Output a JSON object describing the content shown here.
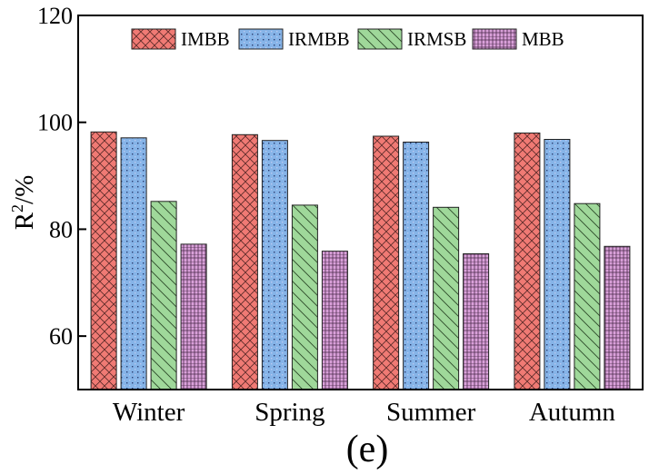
{
  "chart_data": {
    "type": "bar",
    "title": "",
    "xlabel": "",
    "ylabel_base": "R",
    "ylabel_sup": "2",
    "ylabel_unit": "/%",
    "caption": "(e)",
    "categories": [
      "Winter",
      "Spring",
      "Summer",
      "Autumn"
    ],
    "ylim": [
      50,
      120
    ],
    "yticks": [
      60,
      80,
      100,
      120
    ],
    "series": [
      {
        "name": "IMBB",
        "values": [
          98.2,
          97.7,
          97.4,
          98.0
        ],
        "color": "#f07a74",
        "pattern": "crosshatch"
      },
      {
        "name": "IRMBB",
        "values": [
          97.1,
          96.6,
          96.3,
          96.8
        ],
        "color": "#86b4e8",
        "pattern": "dots"
      },
      {
        "name": "IRMSB",
        "values": [
          85.2,
          84.5,
          84.1,
          84.8
        ],
        "color": "#9fd89a",
        "pattern": "backslash"
      },
      {
        "name": "MBB",
        "values": [
          77.2,
          75.9,
          75.4,
          76.8
        ],
        "color": "#d9a0d9",
        "pattern": "grid"
      }
    ],
    "legend_position": "top"
  }
}
